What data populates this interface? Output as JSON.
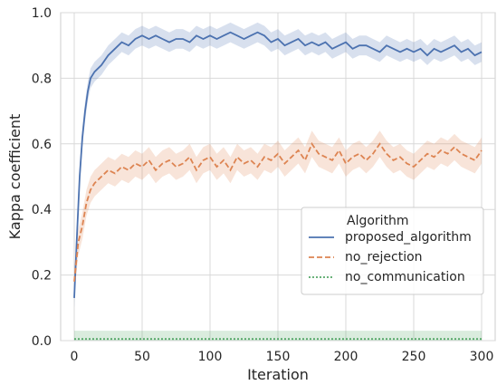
{
  "chart_data": {
    "type": "line",
    "xlabel": "Iteration",
    "ylabel": "Kappa coefficient",
    "xlim": [
      -10,
      310
    ],
    "ylim": [
      0.0,
      1.0
    ],
    "xticks": [
      0,
      50,
      100,
      150,
      200,
      250,
      300
    ],
    "yticks": [
      0.0,
      0.2,
      0.4,
      0.6,
      0.8,
      1.0
    ],
    "xtick_labels": [
      "0",
      "50",
      "100",
      "150",
      "200",
      "250",
      "300"
    ],
    "ytick_labels": [
      "0.0",
      "0.2",
      "0.4",
      "0.6",
      "0.8",
      "1.0"
    ],
    "grid": true,
    "legend": {
      "title": "Algorithm",
      "placement": "center-right"
    },
    "series": [
      {
        "name": "proposed_algorithm",
        "color": "#4c72b0",
        "style": "solid",
        "x": [
          0,
          2,
          4,
          6,
          8,
          10,
          12,
          15,
          20,
          25,
          30,
          35,
          40,
          45,
          50,
          55,
          60,
          65,
          70,
          75,
          80,
          85,
          90,
          95,
          100,
          105,
          110,
          115,
          120,
          125,
          130,
          135,
          140,
          145,
          150,
          155,
          160,
          165,
          170,
          175,
          180,
          185,
          190,
          195,
          200,
          205,
          210,
          215,
          220,
          225,
          230,
          235,
          240,
          245,
          250,
          255,
          260,
          265,
          270,
          275,
          280,
          285,
          290,
          295,
          300
        ],
        "y": [
          0.13,
          0.32,
          0.5,
          0.62,
          0.7,
          0.76,
          0.8,
          0.82,
          0.84,
          0.87,
          0.89,
          0.91,
          0.9,
          0.92,
          0.93,
          0.92,
          0.93,
          0.92,
          0.91,
          0.92,
          0.92,
          0.91,
          0.93,
          0.92,
          0.93,
          0.92,
          0.93,
          0.94,
          0.93,
          0.92,
          0.93,
          0.94,
          0.93,
          0.91,
          0.92,
          0.9,
          0.91,
          0.92,
          0.9,
          0.91,
          0.9,
          0.91,
          0.89,
          0.9,
          0.91,
          0.89,
          0.9,
          0.9,
          0.89,
          0.88,
          0.9,
          0.89,
          0.88,
          0.89,
          0.88,
          0.89,
          0.87,
          0.89,
          0.88,
          0.89,
          0.9,
          0.88,
          0.89,
          0.87,
          0.88
        ],
        "band": 0.03
      },
      {
        "name": "no_rejection",
        "color": "#dd8452",
        "style": "dashed",
        "x": [
          0,
          3,
          6,
          9,
          12,
          15,
          20,
          25,
          30,
          35,
          40,
          45,
          50,
          55,
          60,
          65,
          70,
          75,
          80,
          85,
          90,
          95,
          100,
          105,
          110,
          115,
          120,
          125,
          130,
          135,
          140,
          145,
          150,
          155,
          160,
          165,
          170,
          175,
          180,
          185,
          190,
          195,
          200,
          205,
          210,
          215,
          220,
          225,
          230,
          235,
          240,
          245,
          250,
          255,
          260,
          265,
          270,
          275,
          280,
          285,
          290,
          295,
          300
        ],
        "y": [
          0.18,
          0.3,
          0.35,
          0.42,
          0.46,
          0.48,
          0.5,
          0.52,
          0.51,
          0.53,
          0.52,
          0.54,
          0.53,
          0.55,
          0.52,
          0.54,
          0.55,
          0.53,
          0.54,
          0.56,
          0.52,
          0.55,
          0.56,
          0.53,
          0.55,
          0.52,
          0.56,
          0.54,
          0.55,
          0.53,
          0.56,
          0.55,
          0.57,
          0.54,
          0.56,
          0.58,
          0.55,
          0.6,
          0.57,
          0.56,
          0.55,
          0.58,
          0.54,
          0.56,
          0.57,
          0.55,
          0.57,
          0.6,
          0.57,
          0.55,
          0.56,
          0.54,
          0.53,
          0.55,
          0.57,
          0.56,
          0.58,
          0.57,
          0.59,
          0.57,
          0.56,
          0.55,
          0.58
        ],
        "band": 0.04
      },
      {
        "name": "no_communication",
        "color": "#55a868",
        "style": "dotted",
        "x": [
          0,
          300
        ],
        "y": [
          0.005,
          0.005
        ],
        "band": 0.025
      }
    ]
  }
}
